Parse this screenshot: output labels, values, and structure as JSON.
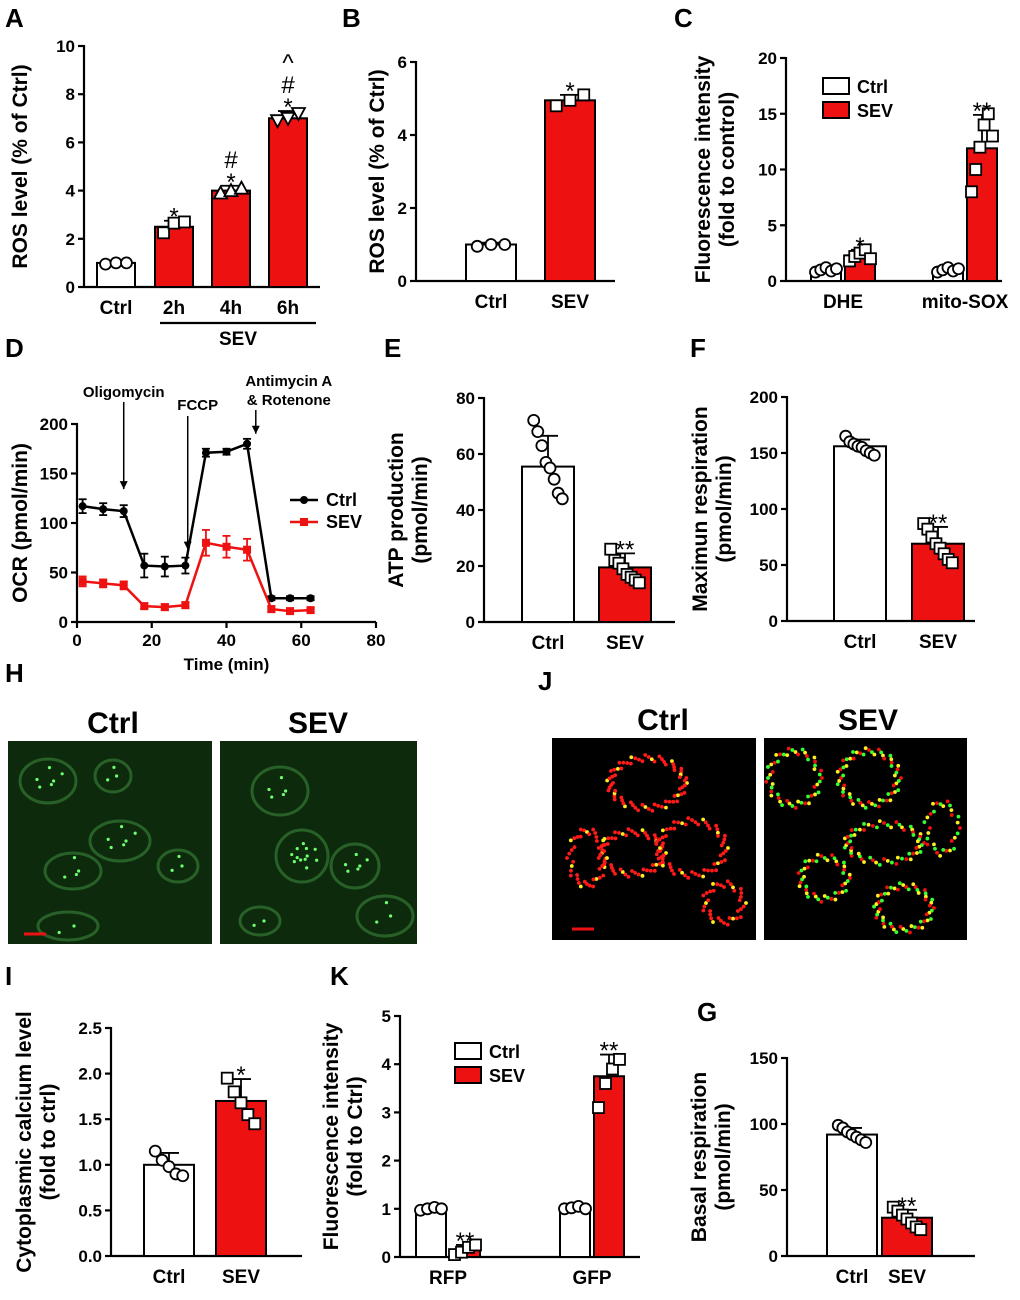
{
  "colors": {
    "sev": "#ee1111",
    "ctrl_fill": "#ffffff",
    "ctrl_line": "#000000",
    "cell_bg": "#003300"
  },
  "panels": {
    "A": {
      "label": "A",
      "group_label": "SEV"
    },
    "B": {
      "label": "B"
    },
    "C": {
      "label": "C"
    },
    "D": {
      "label": "D"
    },
    "E": {
      "label": "E"
    },
    "F": {
      "label": "F"
    },
    "G": {
      "label": "G"
    },
    "H": {
      "label": "H",
      "titles": [
        "Ctrl",
        "SEV"
      ],
      "image_style": "green fluorescence micrographs"
    },
    "I": {
      "label": "I"
    },
    "J": {
      "label": "J",
      "titles": [
        "Ctrl",
        "SEV"
      ],
      "image_style": "red/green fluorescence micrographs"
    },
    "K": {
      "label": "K"
    }
  },
  "chart_data": [
    {
      "id": "A",
      "type": "bar",
      "ylabel": "ROS level (% of Ctrl)",
      "ylim": [
        0,
        10
      ],
      "yticks": [
        0,
        2,
        4,
        6,
        8,
        10
      ],
      "categories": [
        "Ctrl",
        "2h",
        "4h",
        "6h"
      ],
      "values": [
        1.0,
        2.5,
        4.0,
        7.0
      ],
      "errors": [
        0.1,
        0.25,
        0.2,
        0.3
      ],
      "markers": [
        "circle",
        "square",
        "triangle",
        "triangle-down"
      ],
      "points": [
        [
          0.95,
          1.0,
          1.0
        ],
        [
          2.25,
          2.65,
          2.7
        ],
        [
          3.9,
          4.0,
          4.1
        ],
        [
          6.9,
          7.0,
          7.2
        ]
      ],
      "colors": [
        "ctrl",
        "sev",
        "sev",
        "sev"
      ],
      "annotations": [
        [],
        [
          "*"
        ],
        [
          "*",
          "#"
        ],
        [
          "*",
          "#",
          "^"
        ]
      ]
    },
    {
      "id": "B",
      "type": "bar",
      "ylabel": "ROS level (% of Ctrl)",
      "ylim": [
        0,
        6
      ],
      "yticks": [
        0,
        2,
        4,
        6
      ],
      "categories": [
        "Ctrl",
        "SEV"
      ],
      "values": [
        1.0,
        4.95
      ],
      "errors": [
        0.05,
        0.15
      ],
      "markers": [
        "circle",
        "square"
      ],
      "points": [
        [
          0.95,
          1.0,
          1.0
        ],
        [
          4.8,
          4.95,
          5.1
        ]
      ],
      "colors": [
        "ctrl",
        "sev"
      ],
      "annotations": [
        [],
        [
          "*"
        ]
      ]
    },
    {
      "id": "C",
      "type": "bar",
      "ylabel": "Fluorescence intensity (fold to control)",
      "ylim": [
        0,
        20
      ],
      "yticks": [
        0,
        5,
        10,
        15,
        20
      ],
      "categories": [
        "DHE",
        "mito-SOX"
      ],
      "series": [
        {
          "name": "Ctrl",
          "values": [
            1.0,
            1.0
          ],
          "errors": [
            0.2,
            0.2
          ]
        },
        {
          "name": "SEV",
          "values": [
            2.3,
            11.9
          ],
          "errors": [
            0.5,
            3.0
          ]
        }
      ],
      "points": [
        [
          [
            0.8,
            1.0,
            1.2,
            0.9,
            1.1
          ],
          [
            0.8,
            1.0,
            1.2,
            0.9,
            1.1
          ]
        ],
        [
          [
            1.8,
            2.2,
            2.5,
            2.8,
            2.0
          ],
          [
            8.0,
            10.0,
            12.0,
            14.0,
            15.0,
            13.0
          ]
        ]
      ],
      "annotations": [
        [
          "",
          ""
        ],
        [
          "*",
          "**"
        ]
      ]
    },
    {
      "id": "D",
      "type": "line",
      "ylabel": "OCR (pmol/min)",
      "xlabel": "Time (min)",
      "xlim": [
        0,
        80
      ],
      "ylim": [
        0,
        200
      ],
      "xticks": [
        0,
        20,
        40,
        60,
        80
      ],
      "yticks": [
        0,
        50,
        100,
        150,
        200
      ],
      "x": [
        1.5,
        7,
        12.5,
        18,
        23.5,
        29,
        34.5,
        40,
        45.5,
        52,
        57,
        62.5
      ],
      "series": [
        {
          "name": "Ctrl",
          "values": [
            117,
            114,
            112,
            57,
            56,
            57,
            171,
            172,
            180,
            24,
            24,
            24
          ],
          "errors": [
            7,
            6,
            6,
            12,
            10,
            8,
            4,
            3,
            5,
            2,
            2,
            2
          ]
        },
        {
          "name": "SEV",
          "values": [
            41,
            39,
            37,
            16,
            15,
            17,
            80,
            76,
            73,
            13,
            11,
            12
          ],
          "errors": [
            5,
            4,
            4,
            3,
            3,
            3,
            13,
            11,
            11,
            3,
            2,
            2
          ]
        }
      ],
      "annotations": [
        {
          "text": "Oligomycin",
          "x": 12.5
        },
        {
          "text": "FCCP",
          "x": 31.5
        },
        {
          "text": "Antimycin A",
          "x": 46.5
        },
        {
          "text": "& Rotenone",
          "x": 46.5
        }
      ]
    },
    {
      "id": "E",
      "type": "bar",
      "ylabel": "ATP production (pmol/min)",
      "ylim": [
        0,
        80
      ],
      "yticks": [
        0,
        20,
        40,
        60,
        80
      ],
      "categories": [
        "Ctrl",
        "SEV"
      ],
      "values": [
        55.5,
        19.5
      ],
      "errors": [
        11.0,
        5.0
      ],
      "markers": [
        "circle",
        "square"
      ],
      "points": [
        [
          72,
          68,
          63,
          57,
          55,
          51,
          46,
          44
        ],
        [
          26,
          22,
          21,
          19,
          17,
          16,
          15,
          14
        ]
      ],
      "colors": [
        "ctrl",
        "sev"
      ],
      "annotations": [
        [],
        [
          "**"
        ]
      ]
    },
    {
      "id": "F",
      "type": "bar",
      "ylabel": "Maximun respiration (pmol/min)",
      "ylim": [
        0,
        200
      ],
      "yticks": [
        0,
        50,
        100,
        150,
        200
      ],
      "categories": [
        "Ctrl",
        "SEV"
      ],
      "values": [
        156,
        69
      ],
      "errors": [
        6,
        15
      ],
      "markers": [
        "circle",
        "square"
      ],
      "points": [
        [
          165,
          160,
          158,
          156,
          155,
          152,
          150,
          148
        ],
        [
          87,
          82,
          75,
          69,
          65,
          60,
          55,
          52
        ]
      ],
      "colors": [
        "ctrl",
        "sev"
      ],
      "annotations": [
        [],
        [
          "**"
        ]
      ]
    },
    {
      "id": "I",
      "type": "bar",
      "ylabel": "Cytoplasmic calcium level (fold to ctrl)",
      "ylim": [
        0,
        2.5
      ],
      "yticks": [
        0,
        0.5,
        1.0,
        1.5,
        2.0,
        2.5
      ],
      "categories": [
        "Ctrl",
        "SEV"
      ],
      "values": [
        1.0,
        1.7
      ],
      "errors": [
        0.13,
        0.24
      ],
      "markers": [
        "circle",
        "square"
      ],
      "points": [
        [
          1.15,
          1.05,
          0.98,
          0.9,
          0.88
        ],
        [
          1.95,
          1.8,
          1.68,
          1.55,
          1.45
        ]
      ],
      "colors": [
        "ctrl",
        "sev"
      ],
      "annotations": [
        [],
        [
          "*"
        ]
      ]
    },
    {
      "id": "K",
      "type": "bar",
      "ylabel": "Fluorescence intensity (fold to Ctrl)",
      "ylim": [
        0,
        5
      ],
      "yticks": [
        0,
        1,
        2,
        3,
        4,
        5
      ],
      "categories": [
        "RFP",
        "GFP"
      ],
      "series": [
        {
          "name": "Ctrl",
          "values": [
            1.0,
            1.02
          ],
          "errors": [
            0.05,
            0.05
          ]
        },
        {
          "name": "SEV",
          "values": [
            0.15,
            3.75
          ],
          "errors": [
            0.1,
            0.45
          ]
        }
      ],
      "points": [
        [
          [
            0.97,
            1.0,
            1.03,
            1.0
          ],
          [
            1.0,
            1.02,
            1.05,
            1.0
          ]
        ],
        [
          [
            0.05,
            0.1,
            0.2,
            0.25
          ],
          [
            3.1,
            3.6,
            3.9,
            4.1
          ]
        ]
      ],
      "annotations": [
        [
          "",
          ""
        ],
        [
          "**",
          "**"
        ]
      ]
    },
    {
      "id": "G",
      "type": "bar",
      "ylabel": "Basal respiration (pmol/min)",
      "ylim": [
        0,
        150
      ],
      "yticks": [
        0,
        50,
        100,
        150
      ],
      "categories": [
        "Ctrl",
        "SEV"
      ],
      "values": [
        92,
        29
      ],
      "errors": [
        5,
        6
      ],
      "markers": [
        "circle",
        "square"
      ],
      "points": [
        [
          99,
          97,
          94,
          92,
          90,
          88,
          86
        ],
        [
          37,
          34,
          31,
          28,
          25,
          22,
          20
        ]
      ],
      "colors": [
        "ctrl",
        "sev"
      ],
      "annotations": [
        [],
        [
          "**"
        ]
      ]
    }
  ]
}
